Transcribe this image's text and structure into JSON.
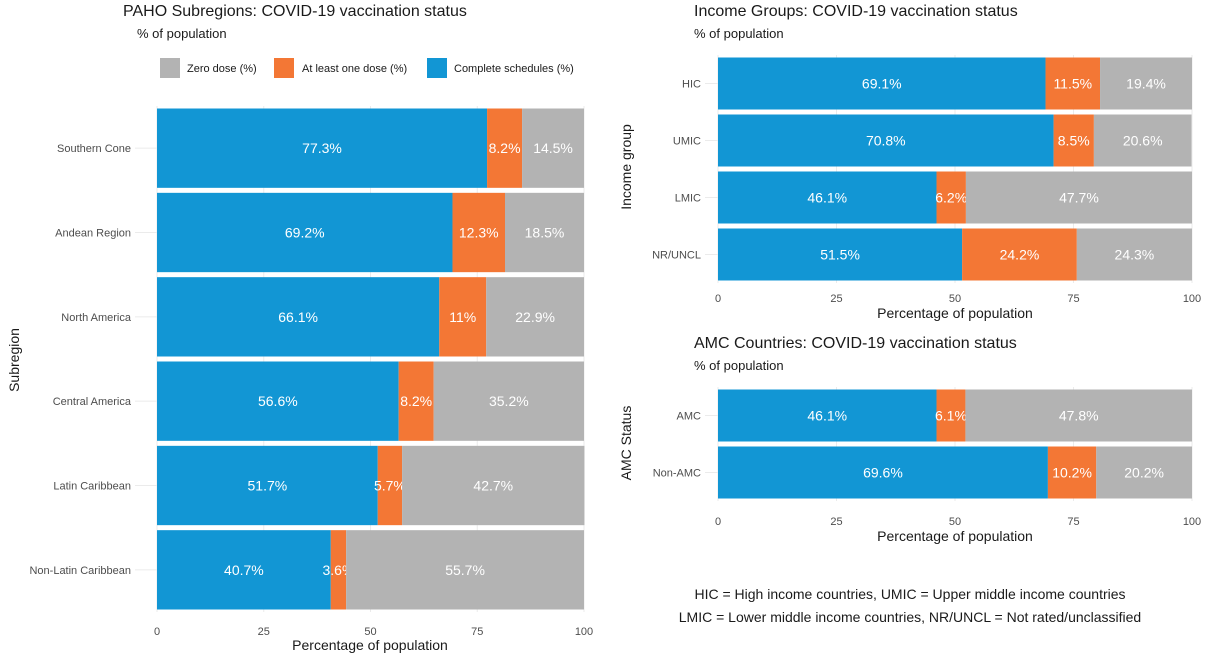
{
  "colors": {
    "zero": "#b3b3b3",
    "one": "#f37735",
    "complete": "#1296d4"
  },
  "legend": {
    "zero": "Zero dose (%)",
    "one": "At least one dose (%)",
    "complete": "Complete schedules (%)"
  },
  "footnote": {
    "line1": "HIC = High income countries, UMIC = Upper middle income countries",
    "line2": "LMIC = Lower middle income countries, NR/UNCL = Not rated/unclassified"
  },
  "chart_data": [
    {
      "type": "bar",
      "orientation": "horizontal",
      "stacked": true,
      "title": "PAHO Subregions: COVID-19 vaccination status",
      "subtitle": "% of population",
      "xlabel": "Percentage of population",
      "ylabel": "Subregion",
      "xlim": [
        0,
        100
      ],
      "xticks": [
        0,
        25,
        50,
        75,
        100
      ],
      "legend_position": "top",
      "categories": [
        "Southern Cone",
        "Andean Region",
        "North America",
        "Central America",
        "Latin Caribbean",
        "Non-Latin Caribbean"
      ],
      "series": [
        {
          "name": "Complete schedules (%)",
          "key": "complete",
          "values": [
            77.3,
            69.2,
            66.1,
            56.6,
            51.7,
            40.7
          ],
          "labels": [
            "77.3%",
            "69.2%",
            "66.1%",
            "56.6%",
            "51.7%",
            "40.7%"
          ]
        },
        {
          "name": "At least one dose (%)",
          "key": "one",
          "values": [
            8.2,
            12.3,
            11,
            8.2,
            5.7,
            3.6
          ],
          "labels": [
            "8.2%",
            "12.3%",
            "11%",
            "8.2%",
            "5.7%",
            "3.6%"
          ]
        },
        {
          "name": "Zero dose (%)",
          "key": "zero",
          "values": [
            14.5,
            18.5,
            22.9,
            35.2,
            42.7,
            55.7
          ],
          "labels": [
            "14.5%",
            "18.5%",
            "22.9%",
            "35.2%",
            "42.7%",
            "55.7%"
          ]
        }
      ]
    },
    {
      "type": "bar",
      "orientation": "horizontal",
      "stacked": true,
      "title": "Income Groups: COVID-19 vaccination status",
      "subtitle": "% of population",
      "xlabel": "Percentage of population",
      "ylabel": "Income group",
      "xlim": [
        0,
        100
      ],
      "xticks": [
        0,
        25,
        50,
        75,
        100
      ],
      "categories": [
        "HIC",
        "UMIC",
        "LMIC",
        "NR/UNCL"
      ],
      "series": [
        {
          "name": "Complete schedules (%)",
          "key": "complete",
          "values": [
            69.1,
            70.8,
            46.1,
            51.5
          ],
          "labels": [
            "69.1%",
            "70.8%",
            "46.1%",
            "51.5%"
          ]
        },
        {
          "name": "At least one dose (%)",
          "key": "one",
          "values": [
            11.5,
            8.5,
            6.2,
            24.2
          ],
          "labels": [
            "11.5%",
            "8.5%",
            "6.2%",
            "24.2%"
          ]
        },
        {
          "name": "Zero dose (%)",
          "key": "zero",
          "values": [
            19.4,
            20.6,
            47.7,
            24.3
          ],
          "labels": [
            "19.4%",
            "20.6%",
            "47.7%",
            "24.3%"
          ]
        }
      ]
    },
    {
      "type": "bar",
      "orientation": "horizontal",
      "stacked": true,
      "title": "AMC Countries: COVID-19 vaccination status",
      "subtitle": "% of population",
      "xlabel": "Percentage of population",
      "ylabel": "AMC Status",
      "xlim": [
        0,
        100
      ],
      "xticks": [
        0,
        25,
        50,
        75,
        100
      ],
      "categories": [
        "AMC",
        "Non-AMC"
      ],
      "series": [
        {
          "name": "Complete schedules (%)",
          "key": "complete",
          "values": [
            46.1,
            69.6
          ],
          "labels": [
            "46.1%",
            "69.6%"
          ]
        },
        {
          "name": "At least one dose (%)",
          "key": "one",
          "values": [
            6.1,
            10.2
          ],
          "labels": [
            "6.1%",
            "10.2%"
          ]
        },
        {
          "name": "Zero dose (%)",
          "key": "zero",
          "values": [
            47.8,
            20.2
          ],
          "labels": [
            "47.8%",
            "20.2%"
          ]
        }
      ]
    }
  ]
}
